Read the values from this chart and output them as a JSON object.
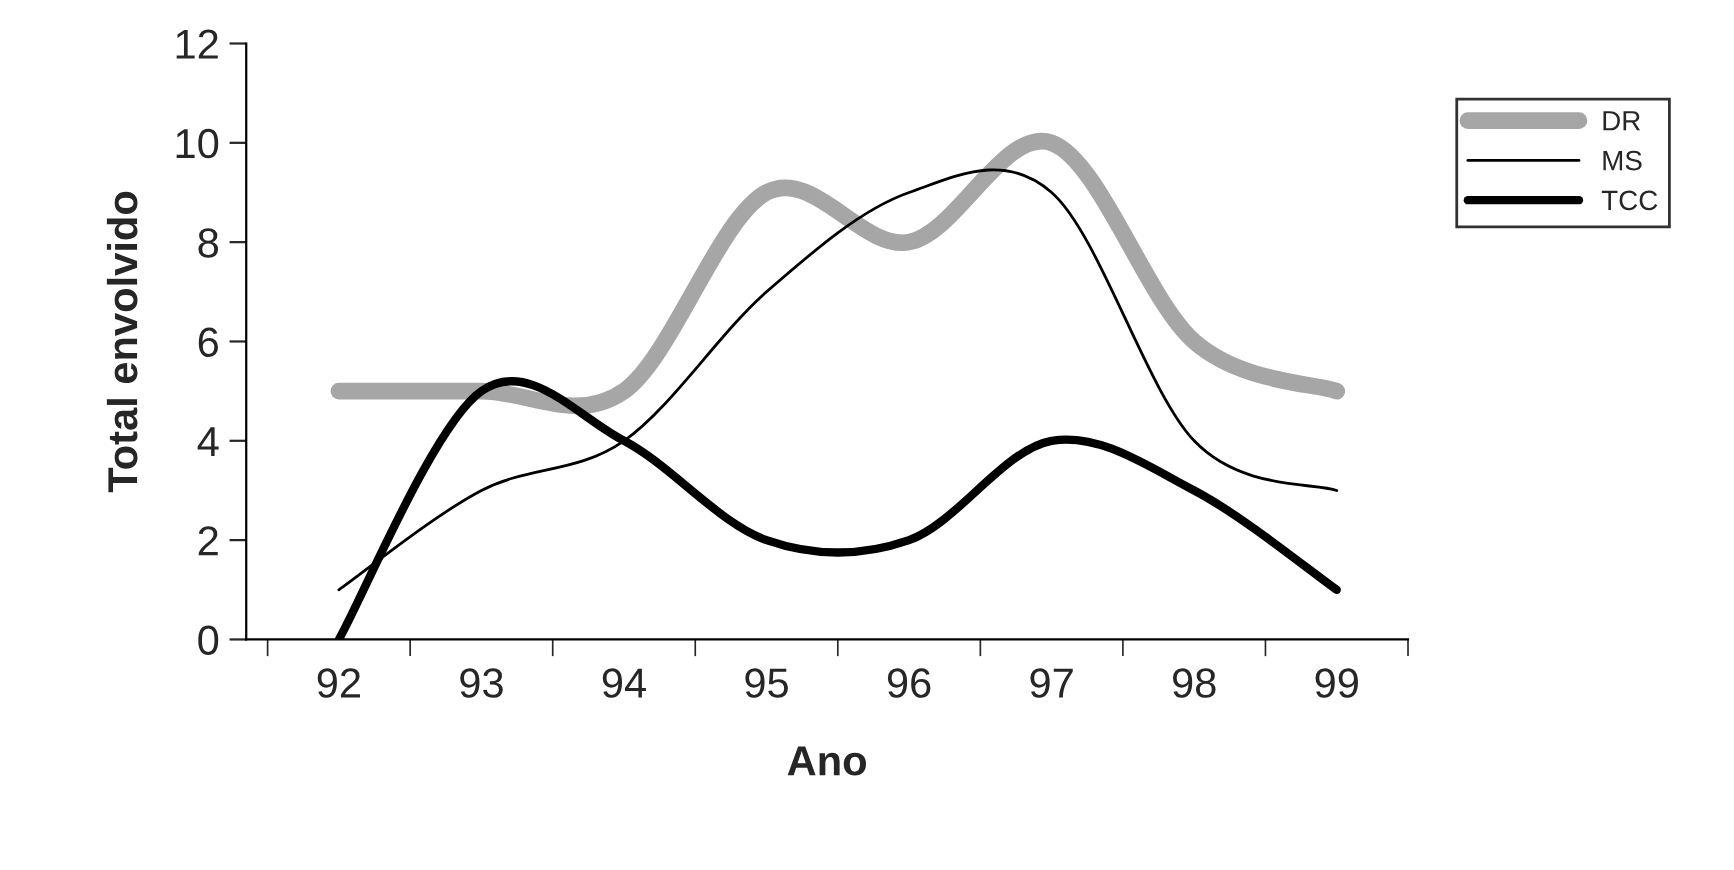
{
  "chart_data": {
    "type": "line",
    "xlabel": "Ano",
    "ylabel": "Total envolvido",
    "categories": [
      "92",
      "93",
      "94",
      "95",
      "96",
      "97",
      "98",
      "99"
    ],
    "series": [
      {
        "name": "DR",
        "color": "#a6a6a6",
        "values": [
          5,
          5,
          5,
          9,
          8,
          10,
          6,
          5
        ]
      },
      {
        "name": "MS",
        "color": "#000000",
        "values": [
          1,
          3,
          4,
          7,
          9,
          9,
          4,
          3
        ]
      },
      {
        "name": "TCC",
        "color": "#000000",
        "values": [
          0,
          5,
          4,
          2,
          2,
          4,
          3,
          1
        ]
      }
    ],
    "ylim": [
      0,
      12
    ],
    "yticks": [
      0,
      2,
      4,
      6,
      8,
      10,
      12
    ],
    "legend": "right",
    "grid": false
  }
}
